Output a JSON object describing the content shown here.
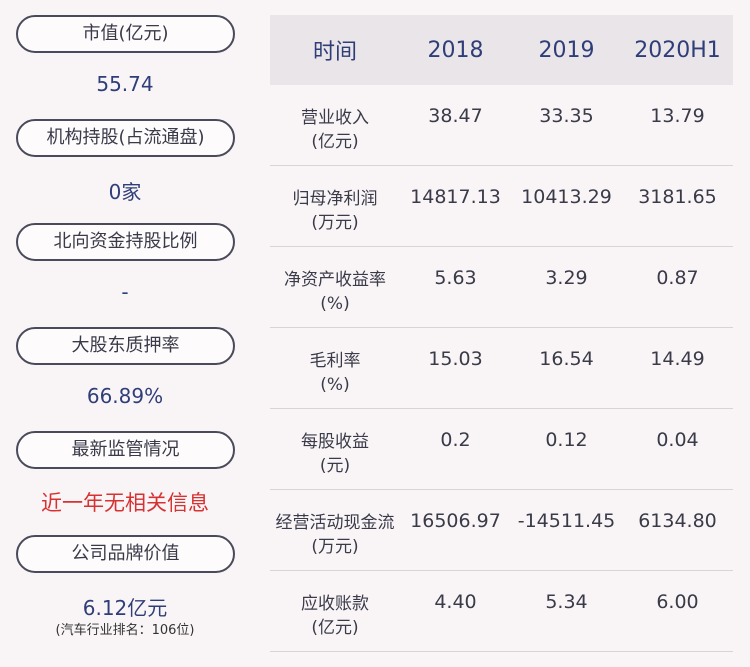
{
  "left_panel": {
    "items": [
      {
        "label": "市值(亿元)",
        "value": "55.74"
      },
      {
        "label": "机构持股(占流通盘)",
        "value": "0家"
      },
      {
        "label": "北向资金持股比例",
        "value": "-"
      },
      {
        "label": "大股东质押率",
        "value": "66.89%"
      },
      {
        "label": "最新监管情况",
        "value": "近一年无相关信息"
      },
      {
        "label": "公司品牌价值",
        "value": "6.12亿元",
        "note": "(汽车行业排名：106位)"
      }
    ]
  },
  "table": {
    "headers": [
      "时间",
      "2018",
      "2019",
      "2020H1"
    ],
    "rows": [
      {
        "label1": "营业收入",
        "label2": "(亿元)",
        "values": [
          "38.47",
          "33.35",
          "13.79"
        ]
      },
      {
        "label1": "归母净利润",
        "label2": "(万元)",
        "values": [
          "14817.13",
          "10413.29",
          "3181.65"
        ]
      },
      {
        "label1": "净资产收益率",
        "label2": "(%)",
        "values": [
          "5.63",
          "3.29",
          "0.87"
        ]
      },
      {
        "label1": "毛利率",
        "label2": "(%)",
        "values": [
          "15.03",
          "16.54",
          "14.49"
        ]
      },
      {
        "label1": "每股收益",
        "label2": "(元)",
        "values": [
          "0.2",
          "0.12",
          "0.04"
        ]
      },
      {
        "label1": "经营活动现金流",
        "label2": "(万元)",
        "values": [
          "16506.97",
          "-14511.45",
          "6134.80"
        ]
      },
      {
        "label1": "应收账款",
        "label2": "(亿元)",
        "values": [
          "4.40",
          "5.34",
          "6.00"
        ]
      }
    ]
  },
  "colors": {
    "background": "#f9f5f7",
    "header_bg": "#eae5e9",
    "value_blue": "#2f3e78",
    "alert_red": "#d63232"
  }
}
